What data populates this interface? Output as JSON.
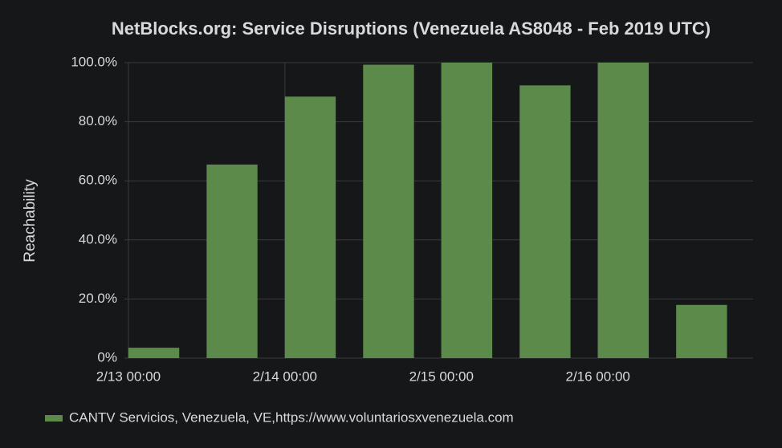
{
  "chart_data": {
    "type": "bar",
    "title": "NetBlocks.org: Service Disruptions (Venezuela AS8048 - Feb 2019 UTC)",
    "y_label": "Reachability",
    "x": [
      0,
      12,
      24,
      36,
      48,
      60,
      72,
      84
    ],
    "series": [
      {
        "name": "CANTV Servicios, Venezuela, VE,https://www.voluntariosxvenezuela.com",
        "color": "#5b8a4b",
        "values": [
          3.5,
          65.5,
          88.5,
          99.3,
          100,
          92.3,
          100,
          18
        ]
      }
    ],
    "xlim": [
      -0.6,
      95.8
    ],
    "xticks": [
      {
        "value": 0,
        "label": "2/13 00:00"
      },
      {
        "value": 24,
        "label": "2/14 00:00"
      },
      {
        "value": 48,
        "label": "2/15 00:00"
      },
      {
        "value": 72,
        "label": "2/16 00:00"
      }
    ],
    "ylim": [
      0,
      100
    ],
    "yticks": [
      {
        "value": 0,
        "label": "0%"
      },
      {
        "value": 20,
        "label": "20.0%"
      },
      {
        "value": 40,
        "label": "40.0%"
      },
      {
        "value": 60,
        "label": "60.0%"
      },
      {
        "value": 80,
        "label": "80.0%"
      },
      {
        "value": 100,
        "label": "100.0%"
      }
    ],
    "grid": true,
    "legend": "bottom-left"
  }
}
